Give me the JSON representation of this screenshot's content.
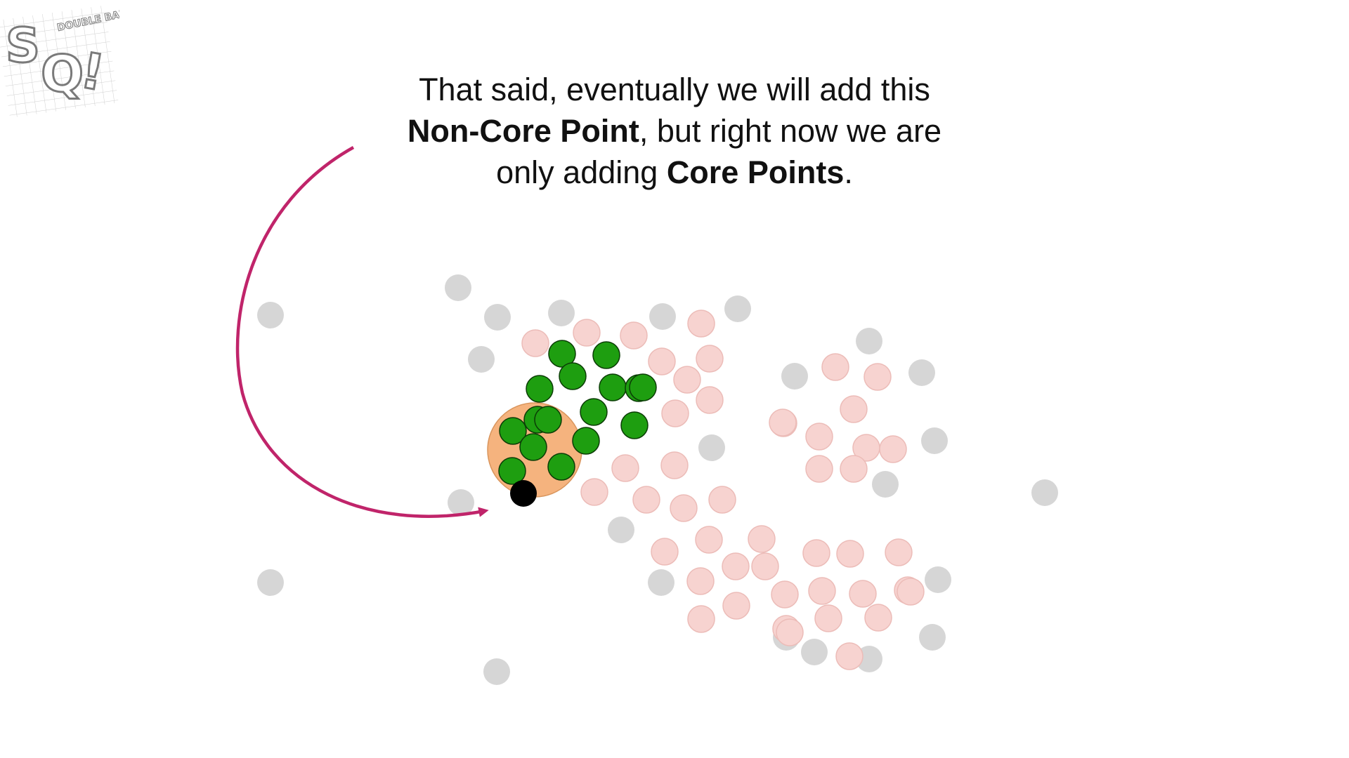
{
  "caption": {
    "line1": "That said, eventually we will add this",
    "line2_bold": "Non-Core Point",
    "line2_rest": ", but right now we are",
    "line3_start": "only adding ",
    "line3_bold": "Core Points",
    "line3_end": "."
  },
  "logo": {
    "letters_big": "SQ!",
    "letters_small": "DOUBLE BAM!!"
  },
  "colors": {
    "core_point": "#1e9e10",
    "core_outline": "#0b3d06",
    "pending_point": "#f7d3d0",
    "pending_outline": "#ecbcb8",
    "noise_point": "#d6d6d6",
    "non_core_point": "#000000",
    "radius_area": "#f5b37e",
    "arrow": "#c0246a"
  },
  "legend_concepts": {
    "non_core_point": "Non-Core Point",
    "core_points": "Core Points"
  }
}
